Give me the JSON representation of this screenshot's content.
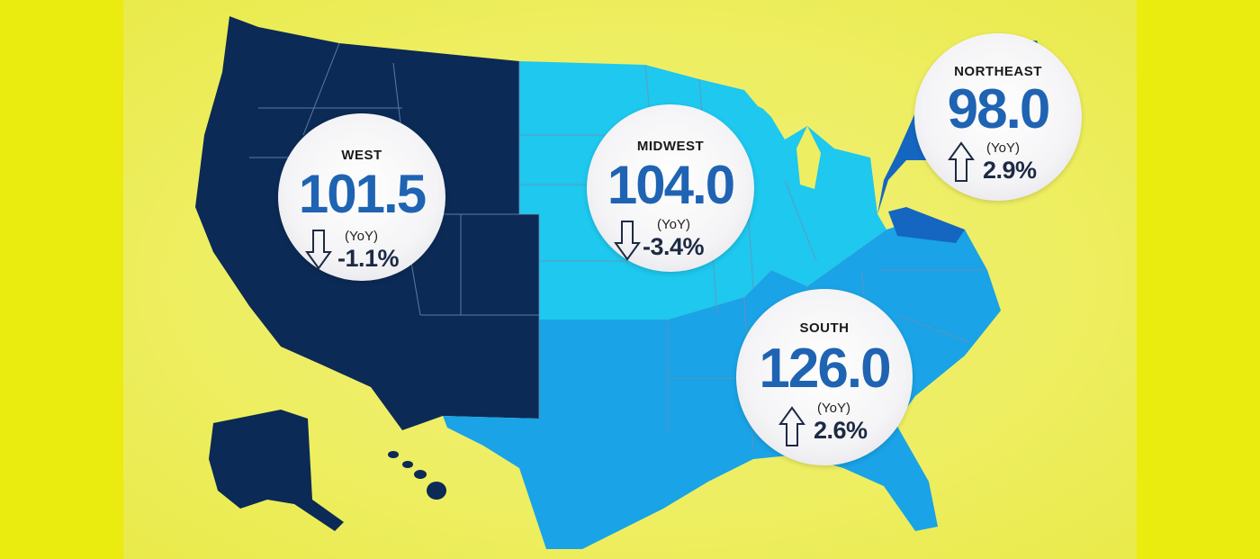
{
  "colors": {
    "background": "#eaec10",
    "west": "#0b2a55",
    "midwest": "#1ec8ee",
    "south": "#1aa3e6",
    "northeast": "#1566c0",
    "value_text": "#1f63b3",
    "border_lines": "#6f8fb8"
  },
  "regions": {
    "west": {
      "name": "WEST",
      "value": "101.5",
      "yoy_label": "(YoY)",
      "change": "-1.1%",
      "direction": "down",
      "arrow_icon": "arrow-down-icon"
    },
    "midwest": {
      "name": "MIDWEST",
      "value": "104.0",
      "yoy_label": "(YoY)",
      "change": "-3.4%",
      "direction": "down",
      "arrow_icon": "arrow-down-icon"
    },
    "northeast": {
      "name": "NORTHEAST",
      "value": "98.0",
      "yoy_label": "(YoY)",
      "change": "2.9%",
      "direction": "up",
      "arrow_icon": "arrow-up-icon"
    },
    "south": {
      "name": "SOUTH",
      "value": "126.0",
      "yoy_label": "(YoY)",
      "change": "2.6%",
      "direction": "up",
      "arrow_icon": "arrow-up-icon"
    }
  }
}
